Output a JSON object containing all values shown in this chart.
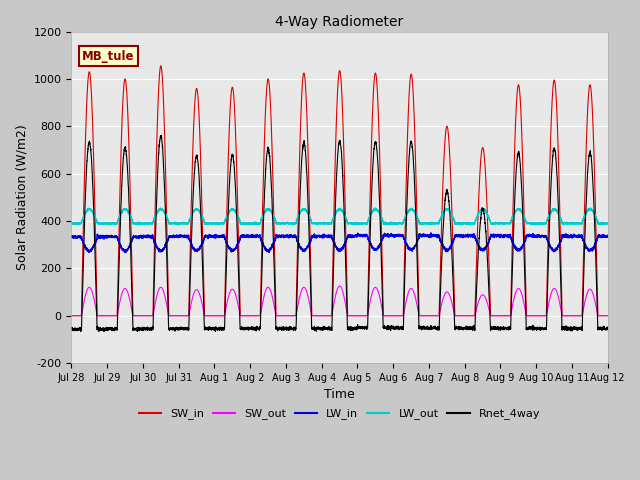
{
  "title": "4-Way Radiometer",
  "xlabel": "Time",
  "ylabel": "Solar Radiation (W/m2)",
  "ylim": [
    -200,
    1200
  ],
  "fig_bg": "#c8c8c8",
  "plot_bg": "#e8e8e8",
  "annotation_label": "MB_tule",
  "annotation_bg": "#ffffcc",
  "annotation_border": "#8b0000",
  "annotation_text_color": "#8b0000",
  "colors": {
    "SW_in": "#dd0000",
    "SW_out": "#ff00ff",
    "LW_in": "#0000dd",
    "LW_out": "#00cccc",
    "Rnet_4way": "#000000"
  },
  "x_tick_labels": [
    "Jul 28",
    "Jul 29",
    "Jul 30",
    "Jul 31",
    "Aug 1",
    "Aug 2",
    "Aug 3",
    "Aug 4",
    "Aug 5",
    "Aug 6",
    "Aug 7",
    "Aug 8",
    "Aug 9",
    "Aug 10",
    "Aug 11",
    "Aug 12"
  ],
  "num_days": 15,
  "points_per_day": 288,
  "sw_in_peaks": [
    1030,
    1000,
    1055,
    960,
    965,
    1000,
    1025,
    1035,
    1025,
    1020,
    800,
    710,
    975,
    995,
    975
  ],
  "sw_out_peaks": [
    120,
    115,
    120,
    110,
    112,
    120,
    120,
    125,
    120,
    115,
    100,
    88,
    115,
    115,
    112
  ],
  "lw_in_base": 330,
  "lw_in_day_drop": 55,
  "lw_out_base": 395,
  "lw_out_day_rise": 55,
  "night_rnet": -100
}
